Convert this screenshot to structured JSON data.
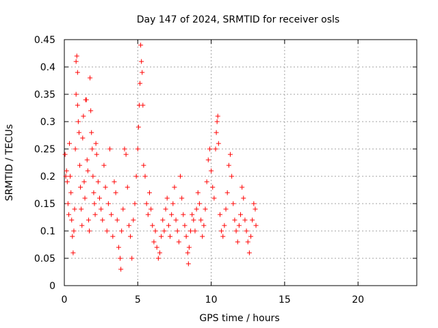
{
  "chart_data": {
    "type": "scatter",
    "title": "Day 147 of 2024, SRMTID for receiver osls",
    "xlabel": "GPS time / hours",
    "ylabel": "SRMTID / TECUs",
    "xlim": [
      0,
      24
    ],
    "ylim": [
      0,
      0.45
    ],
    "xticks": [
      0,
      5,
      10,
      15,
      20
    ],
    "yticks": [
      0,
      0.05,
      0.1,
      0.15,
      0.2,
      0.25,
      0.3,
      0.35,
      0.4,
      0.45
    ],
    "x_tick_labels": [
      "0",
      "5",
      "10",
      "15",
      "20"
    ],
    "y_tick_labels": [
      "0",
      "0.05",
      "0.1",
      "0.15",
      "0.2",
      "0.25",
      "0.3",
      "0.35",
      "0.4",
      "0.45"
    ],
    "grid": true,
    "marker": "+",
    "color": "#ff0000",
    "series": [
      {
        "values_note": "",
        "points": [
          [
            0.05,
            0.24
          ],
          [
            0.1,
            0.2
          ],
          [
            0.15,
            0.21
          ],
          [
            0.2,
            0.19
          ],
          [
            0.25,
            0.15
          ],
          [
            0.3,
            0.13
          ],
          [
            0.35,
            0.26
          ],
          [
            0.4,
            0.2
          ],
          [
            0.45,
            0.17
          ],
          [
            0.5,
            0.12
          ],
          [
            0.55,
            0.09
          ],
          [
            0.6,
            0.06
          ],
          [
            0.65,
            0.1
          ],
          [
            0.7,
            0.14
          ],
          [
            0.75,
            0.25
          ],
          [
            0.8,
            0.35
          ],
          [
            0.8,
            0.41
          ],
          [
            0.85,
            0.42
          ],
          [
            0.9,
            0.39
          ],
          [
            0.9,
            0.33
          ],
          [
            0.95,
            0.3
          ],
          [
            1.0,
            0.28
          ],
          [
            1.05,
            0.22
          ],
          [
            1.1,
            0.18
          ],
          [
            1.15,
            0.14
          ],
          [
            1.2,
            0.11
          ],
          [
            1.25,
            0.27
          ],
          [
            1.3,
            0.31
          ],
          [
            1.35,
            0.19
          ],
          [
            1.4,
            0.16
          ],
          [
            1.45,
            0.34
          ],
          [
            1.5,
            0.34
          ],
          [
            1.55,
            0.23
          ],
          [
            1.6,
            0.21
          ],
          [
            1.65,
            0.12
          ],
          [
            1.7,
            0.1
          ],
          [
            1.75,
            0.38
          ],
          [
            1.8,
            0.32
          ],
          [
            1.85,
            0.28
          ],
          [
            1.9,
            0.25
          ],
          [
            1.95,
            0.2
          ],
          [
            2.0,
            0.17
          ],
          [
            2.05,
            0.15
          ],
          [
            2.1,
            0.13
          ],
          [
            2.15,
            0.26
          ],
          [
            2.2,
            0.24
          ],
          [
            2.3,
            0.19
          ],
          [
            2.4,
            0.16
          ],
          [
            2.5,
            0.14
          ],
          [
            2.6,
            0.12
          ],
          [
            2.7,
            0.22
          ],
          [
            2.8,
            0.18
          ],
          [
            2.9,
            0.1
          ],
          [
            3.0,
            0.15
          ],
          [
            3.1,
            0.25
          ],
          [
            3.2,
            0.13
          ],
          [
            3.3,
            0.09
          ],
          [
            3.4,
            0.19
          ],
          [
            3.5,
            0.17
          ],
          [
            3.6,
            0.12
          ],
          [
            3.7,
            0.07
          ],
          [
            3.8,
            0.05
          ],
          [
            3.85,
            0.03
          ],
          [
            3.9,
            0.1
          ],
          [
            4.0,
            0.14
          ],
          [
            4.1,
            0.25
          ],
          [
            4.2,
            0.24
          ],
          [
            4.3,
            0.18
          ],
          [
            4.4,
            0.11
          ],
          [
            4.5,
            0.09
          ],
          [
            4.6,
            0.05
          ],
          [
            4.7,
            0.12
          ],
          [
            4.8,
            0.15
          ],
          [
            4.9,
            0.2
          ],
          [
            5.0,
            0.25
          ],
          [
            5.05,
            0.29
          ],
          [
            5.1,
            0.33
          ],
          [
            5.15,
            0.37
          ],
          [
            5.2,
            0.44
          ],
          [
            5.25,
            0.41
          ],
          [
            5.3,
            0.39
          ],
          [
            5.35,
            0.33
          ],
          [
            5.4,
            0.22
          ],
          [
            5.5,
            0.2
          ],
          [
            5.6,
            0.15
          ],
          [
            5.7,
            0.13
          ],
          [
            5.8,
            0.17
          ],
          [
            5.9,
            0.14
          ],
          [
            6.0,
            0.11
          ],
          [
            6.1,
            0.08
          ],
          [
            6.2,
            0.1
          ],
          [
            6.3,
            0.07
          ],
          [
            6.4,
            0.05
          ],
          [
            6.5,
            0.06
          ],
          [
            6.6,
            0.09
          ],
          [
            6.7,
            0.12
          ],
          [
            6.8,
            0.1
          ],
          [
            6.9,
            0.14
          ],
          [
            7.0,
            0.16
          ],
          [
            7.1,
            0.11
          ],
          [
            7.2,
            0.09
          ],
          [
            7.3,
            0.13
          ],
          [
            7.4,
            0.15
          ],
          [
            7.5,
            0.18
          ],
          [
            7.6,
            0.12
          ],
          [
            7.7,
            0.1
          ],
          [
            7.8,
            0.08
          ],
          [
            7.9,
            0.2
          ],
          [
            8.0,
            0.16
          ],
          [
            8.1,
            0.13
          ],
          [
            8.2,
            0.11
          ],
          [
            8.3,
            0.09
          ],
          [
            8.4,
            0.06
          ],
          [
            8.45,
            0.04
          ],
          [
            8.5,
            0.07
          ],
          [
            8.6,
            0.1
          ],
          [
            8.7,
            0.13
          ],
          [
            8.8,
            0.12
          ],
          [
            8.9,
            0.1
          ],
          [
            9.0,
            0.14
          ],
          [
            9.1,
            0.17
          ],
          [
            9.2,
            0.15
          ],
          [
            9.3,
            0.12
          ],
          [
            9.4,
            0.09
          ],
          [
            9.5,
            0.11
          ],
          [
            9.6,
            0.14
          ],
          [
            9.7,
            0.19
          ],
          [
            9.8,
            0.23
          ],
          [
            9.9,
            0.25
          ],
          [
            10.0,
            0.21
          ],
          [
            10.1,
            0.18
          ],
          [
            10.2,
            0.16
          ],
          [
            10.3,
            0.25
          ],
          [
            10.35,
            0.28
          ],
          [
            10.4,
            0.3
          ],
          [
            10.45,
            0.31
          ],
          [
            10.5,
            0.26
          ],
          [
            10.6,
            0.13
          ],
          [
            10.7,
            0.1
          ],
          [
            10.8,
            0.09
          ],
          [
            10.9,
            0.11
          ],
          [
            11.0,
            0.14
          ],
          [
            11.1,
            0.17
          ],
          [
            11.2,
            0.22
          ],
          [
            11.3,
            0.24
          ],
          [
            11.4,
            0.2
          ],
          [
            11.5,
            0.15
          ],
          [
            11.6,
            0.12
          ],
          [
            11.7,
            0.1
          ],
          [
            11.8,
            0.08
          ],
          [
            11.9,
            0.11
          ],
          [
            12.0,
            0.13
          ],
          [
            12.1,
            0.18
          ],
          [
            12.2,
            0.16
          ],
          [
            12.3,
            0.12
          ],
          [
            12.4,
            0.1
          ],
          [
            12.5,
            0.08
          ],
          [
            12.6,
            0.06
          ],
          [
            12.7,
            0.09
          ],
          [
            12.8,
            0.12
          ],
          [
            12.9,
            0.15
          ],
          [
            13.0,
            0.14
          ],
          [
            13.05,
            0.11
          ]
        ]
      }
    ]
  }
}
